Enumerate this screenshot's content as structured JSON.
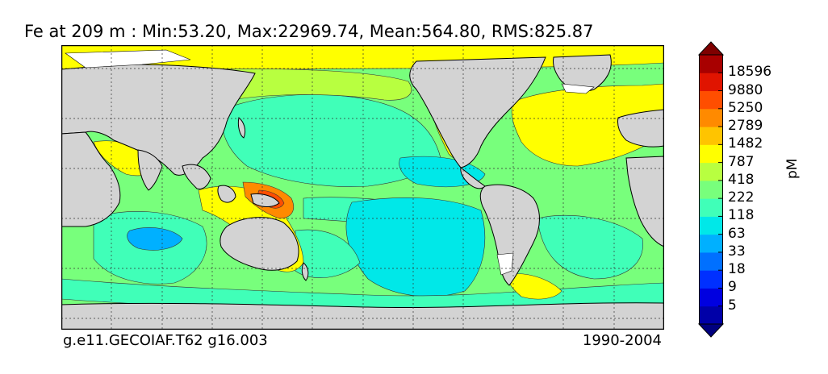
{
  "title": "Fe at 209 m : Min:53.20, Max:22969.74, Mean:564.80, RMS:825.87",
  "footer": {
    "case_name": "g.e11.GECOIAF.T62 g16.003",
    "period": "1990-2004"
  },
  "chart_data": {
    "type": "heatmap",
    "variable": "Fe",
    "depth": "209 m",
    "stats": {
      "min": 53.2,
      "max": 22969.74,
      "mean": 564.8,
      "rms": 825.87
    },
    "projection": "cylindrical",
    "lon_range": [
      -180,
      180
    ],
    "lat_range": [
      -80,
      90
    ],
    "colorbar": {
      "unit": "pM",
      "orientation": "vertical",
      "position": "right",
      "extend": "both",
      "tick_labels": [
        "5",
        "9",
        "18",
        "33",
        "63",
        "118",
        "222",
        "418",
        "787",
        "1482",
        "2789",
        "5250",
        "9880",
        "18596"
      ],
      "colors": [
        "#00007f",
        "#0000a8",
        "#0000e0",
        "#0030ff",
        "#0070ff",
        "#00b0ff",
        "#00e8e8",
        "#40ffb8",
        "#78ff7c",
        "#b8ff40",
        "#ffff00",
        "#ffc400",
        "#ff8a00",
        "#ff4e00",
        "#e01400",
        "#a80000",
        "#7f0000"
      ]
    },
    "land_color": "#d3d3d3",
    "gridlines": "dashed"
  }
}
